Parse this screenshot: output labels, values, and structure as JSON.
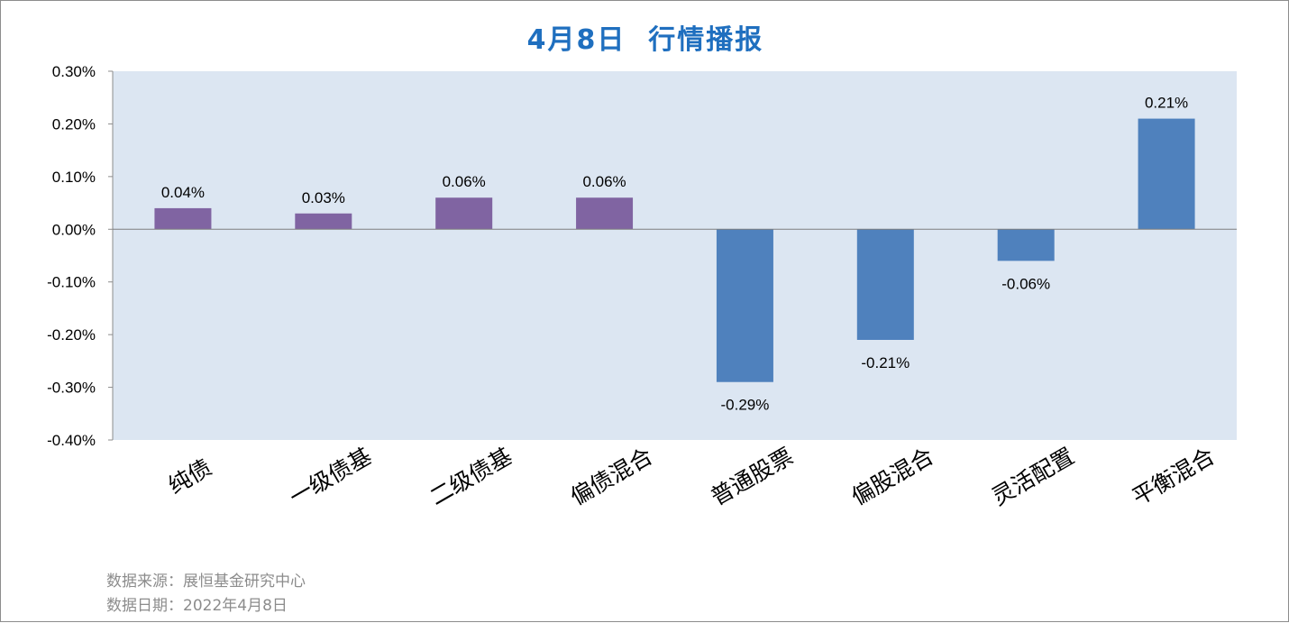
{
  "chart_data": {
    "type": "bar",
    "title": "4月8日  行情播报",
    "categories": [
      "纯债",
      "一级债基",
      "二级债基",
      "偏债混合",
      "普通股票",
      "偏股混合",
      "灵活配置",
      "平衡混合"
    ],
    "values": [
      0.04,
      0.03,
      0.06,
      0.06,
      -0.29,
      -0.21,
      -0.06,
      0.21
    ],
    "value_labels": [
      "0.04%",
      "0.03%",
      "0.06%",
      "0.06%",
      "-0.29%",
      "-0.21%",
      "-0.06%",
      "0.21%"
    ],
    "unit": "%",
    "ylim": [
      -0.4,
      0.3
    ],
    "yticks": [
      0.3,
      0.2,
      0.1,
      0.0,
      -0.1,
      -0.2,
      -0.3,
      -0.4
    ],
    "ytick_labels": [
      "0.30%",
      "0.20%",
      "0.10%",
      "0.00%",
      "-0.10%",
      "-0.20%",
      "-0.30%",
      "-0.40%"
    ],
    "xlabel": "",
    "ylabel": "",
    "grid": false,
    "legend": "none",
    "colors": {
      "bond_funds": "#8064a2",
      "equity_mixed_funds": "#4f81bd",
      "plot_background": "#dce6f2",
      "zero_line": "#7f7f7f",
      "title": "#1f6fbf"
    },
    "bar_color_groups": [
      "bond_funds",
      "bond_funds",
      "bond_funds",
      "bond_funds",
      "equity_mixed_funds",
      "equity_mixed_funds",
      "equity_mixed_funds",
      "equity_mixed_funds"
    ]
  },
  "footer": {
    "source": "数据来源：展恒基金研究中心",
    "date": "数据日期：2022年4月8日"
  }
}
